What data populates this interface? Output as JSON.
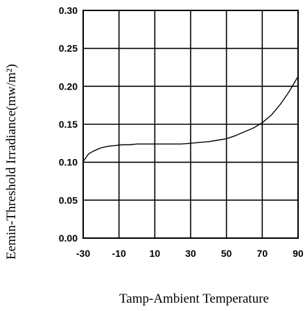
{
  "chart_data": {
    "type": "line",
    "xlabel": "Tamp-Ambient Temperature",
    "ylabel": "Eemin-Threshold Irradiance(mw/m²)",
    "xlim": [
      -30,
      90
    ],
    "ylim": [
      0.0,
      0.3
    ],
    "x_ticks": [
      "-30",
      "-10",
      "10",
      "30",
      "50",
      "70",
      "90"
    ],
    "y_ticks": [
      "0.00",
      "0.05",
      "0.10",
      "0.15",
      "0.20",
      "0.25",
      "0.30"
    ],
    "grid": true,
    "series": [
      {
        "x": [
          -30,
          -27,
          -24,
          -20,
          -16,
          -12,
          -8,
          -4,
          0,
          5,
          10,
          15,
          20,
          25,
          30,
          35,
          40,
          45,
          50,
          55,
          60,
          65,
          70,
          75,
          80,
          85,
          90
        ],
        "y": [
          0.101,
          0.111,
          0.115,
          0.119,
          0.121,
          0.122,
          0.123,
          0.123,
          0.124,
          0.124,
          0.124,
          0.124,
          0.124,
          0.124,
          0.125,
          0.126,
          0.127,
          0.129,
          0.131,
          0.135,
          0.14,
          0.145,
          0.152,
          0.162,
          0.176,
          0.193,
          0.213
        ]
      }
    ]
  }
}
